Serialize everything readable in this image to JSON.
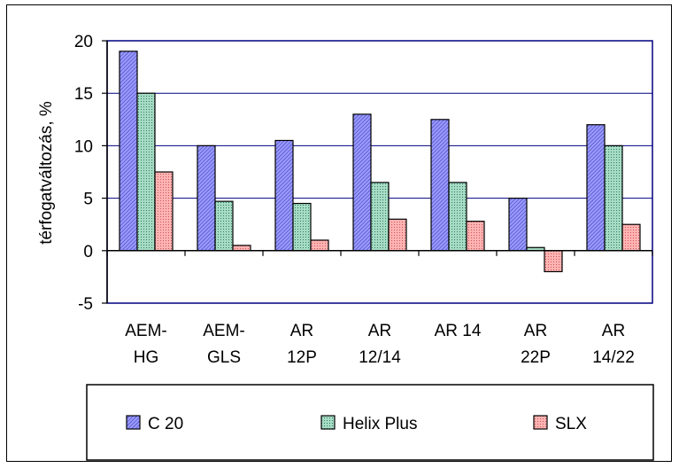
{
  "chart_data": {
    "type": "bar",
    "title": "",
    "xlabel": "",
    "ylabel": "térfogatváltozás, %",
    "ylim": [
      -5,
      20
    ],
    "yticks": [
      "-5",
      "0",
      "5",
      "10",
      "15",
      "20"
    ],
    "categories": [
      [
        "AEM-",
        "HG"
      ],
      [
        "AEM-",
        "GLS"
      ],
      [
        "AR",
        "12P"
      ],
      [
        "AR",
        "12/14"
      ],
      [
        "AR  14"
      ],
      [
        "AR",
        "22P"
      ],
      [
        "AR",
        "14/22"
      ]
    ],
    "series": [
      {
        "name": "C 20",
        "values": [
          19,
          10,
          10.5,
          13,
          12.5,
          5,
          12
        ],
        "color": "#9999ff",
        "pattern": "hatch-c20"
      },
      {
        "name": "Helix Plus",
        "values": [
          15,
          4.7,
          4.5,
          6.5,
          6.5,
          0.3,
          10
        ],
        "color": "#99ccb3",
        "pattern": "hatch-helix"
      },
      {
        "name": "SLX",
        "values": [
          7.5,
          0.5,
          1,
          3,
          2.8,
          -2,
          2.5
        ],
        "color": "#ff9999",
        "pattern": "hatch-slx"
      }
    ],
    "grid": true,
    "legend_position": "bottom"
  }
}
